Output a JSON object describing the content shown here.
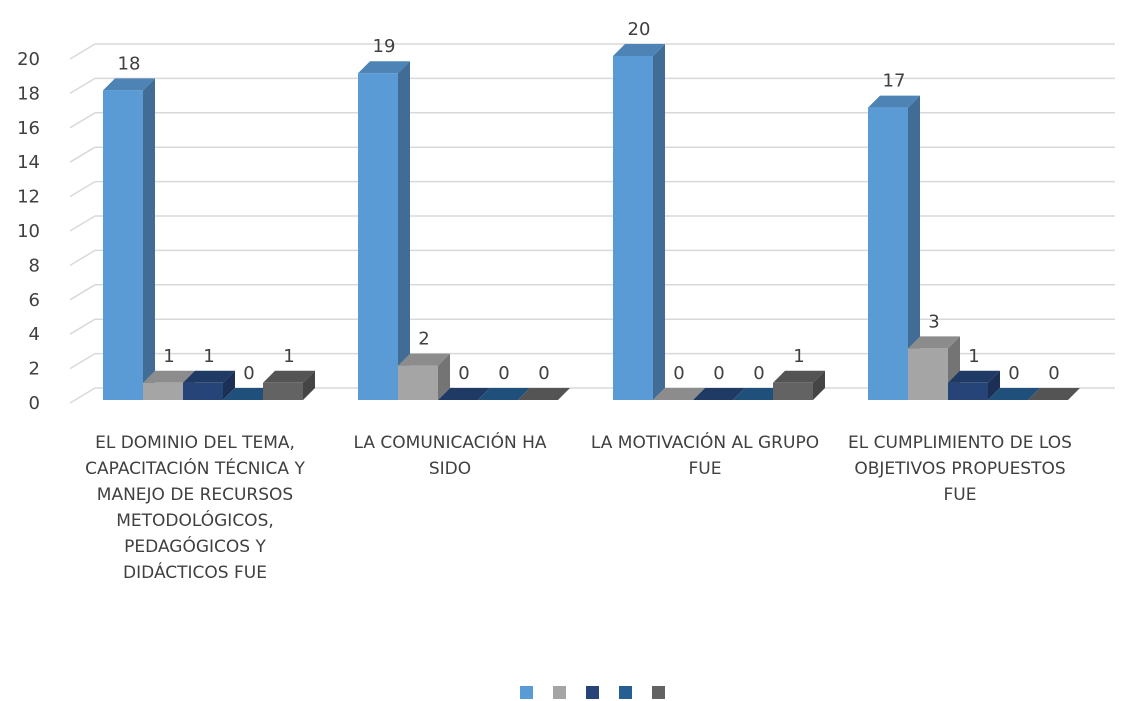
{
  "chart_data": {
    "type": "bar3d",
    "categories": [
      "EL DOMINIO DEL TEMA, CAPACITACIÓN TÉCNICA Y MANEJO DE RECURSOS METODOLÓGICOS, PEDAGÓGICOS Y DIDÁCTICOS FUE",
      "LA COMUNICACIÓN HA SIDO",
      "LA MOTIVACIÓN AL GRUPO FUE",
      "EL CUMPLIMIENTO DE LOS OBJETIVOS PROPUESTOS FUE"
    ],
    "series": [
      {
        "color": "#5b9bd5",
        "values": [
          18,
          19,
          20,
          17
        ]
      },
      {
        "color": "#a5a5a5",
        "values": [
          1,
          2,
          0,
          3
        ]
      },
      {
        "color": "#264478",
        "values": [
          1,
          0,
          0,
          1
        ]
      },
      {
        "color": "#255e91",
        "values": [
          0,
          0,
          0,
          0
        ]
      },
      {
        "color": "#636363",
        "values": [
          1,
          0,
          1,
          0
        ]
      }
    ],
    "ylim": [
      0,
      20
    ],
    "yticks": [
      0,
      2,
      4,
      6,
      8,
      10,
      12,
      14,
      16,
      18,
      20
    ],
    "grid": true,
    "legend": "bottom"
  }
}
